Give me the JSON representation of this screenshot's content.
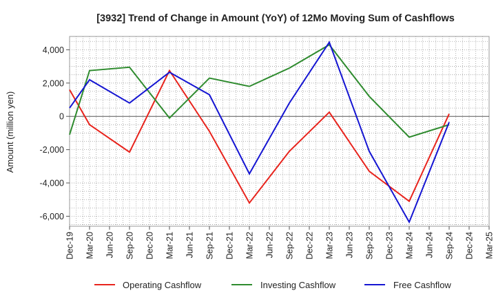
{
  "chart_data": {
    "type": "line",
    "title": "[3932]  Trend of Change in Amount (YoY) of 12Mo Moving Sum of Cashflows",
    "xlabel": "",
    "ylabel": "Amount (million yen)",
    "ylim": [
      -6600,
      4800
    ],
    "yticks": [
      4000,
      2000,
      0,
      -2000,
      -4000,
      -6000
    ],
    "ytick_labels": [
      "4,000",
      "2,000",
      "0",
      "-2,000",
      "-4,000",
      "-6,000"
    ],
    "categories": [
      "Dec-19",
      "Mar-20",
      "Jun-20",
      "Sep-20",
      "Dec-20",
      "Mar-21",
      "Jun-21",
      "Sep-21",
      "Dec-21",
      "Mar-22",
      "Jun-22",
      "Sep-22",
      "Dec-22",
      "Mar-23",
      "Jun-23",
      "Sep-23",
      "Dec-23",
      "Mar-24",
      "Jun-24",
      "Sep-24",
      "Dec-24",
      "Mar-25"
    ],
    "series": [
      {
        "name": "Operating Cashflow",
        "color": "#e8231c",
        "values": [
          1600,
          -500,
          null,
          -2150,
          null,
          2750,
          null,
          -900,
          null,
          -5200,
          null,
          -2100,
          null,
          250,
          null,
          -3300,
          null,
          -5100,
          null,
          150,
          null,
          null
        ]
      },
      {
        "name": "Investing Cashflow",
        "color": "#2e8b2e",
        "values": [
          -1100,
          2750,
          null,
          2950,
          null,
          -100,
          null,
          2300,
          null,
          1800,
          null,
          2900,
          null,
          4300,
          null,
          1200,
          null,
          -1250,
          null,
          -500,
          null,
          null
        ]
      },
      {
        "name": "Free Cashflow",
        "color": "#1414d2",
        "values": [
          500,
          2200,
          null,
          800,
          null,
          2650,
          null,
          1300,
          null,
          -3450,
          null,
          800,
          null,
          4450,
          null,
          -2100,
          null,
          -6350,
          null,
          -350,
          null,
          null
        ]
      }
    ],
    "legend_position": "bottom",
    "grid": true
  }
}
